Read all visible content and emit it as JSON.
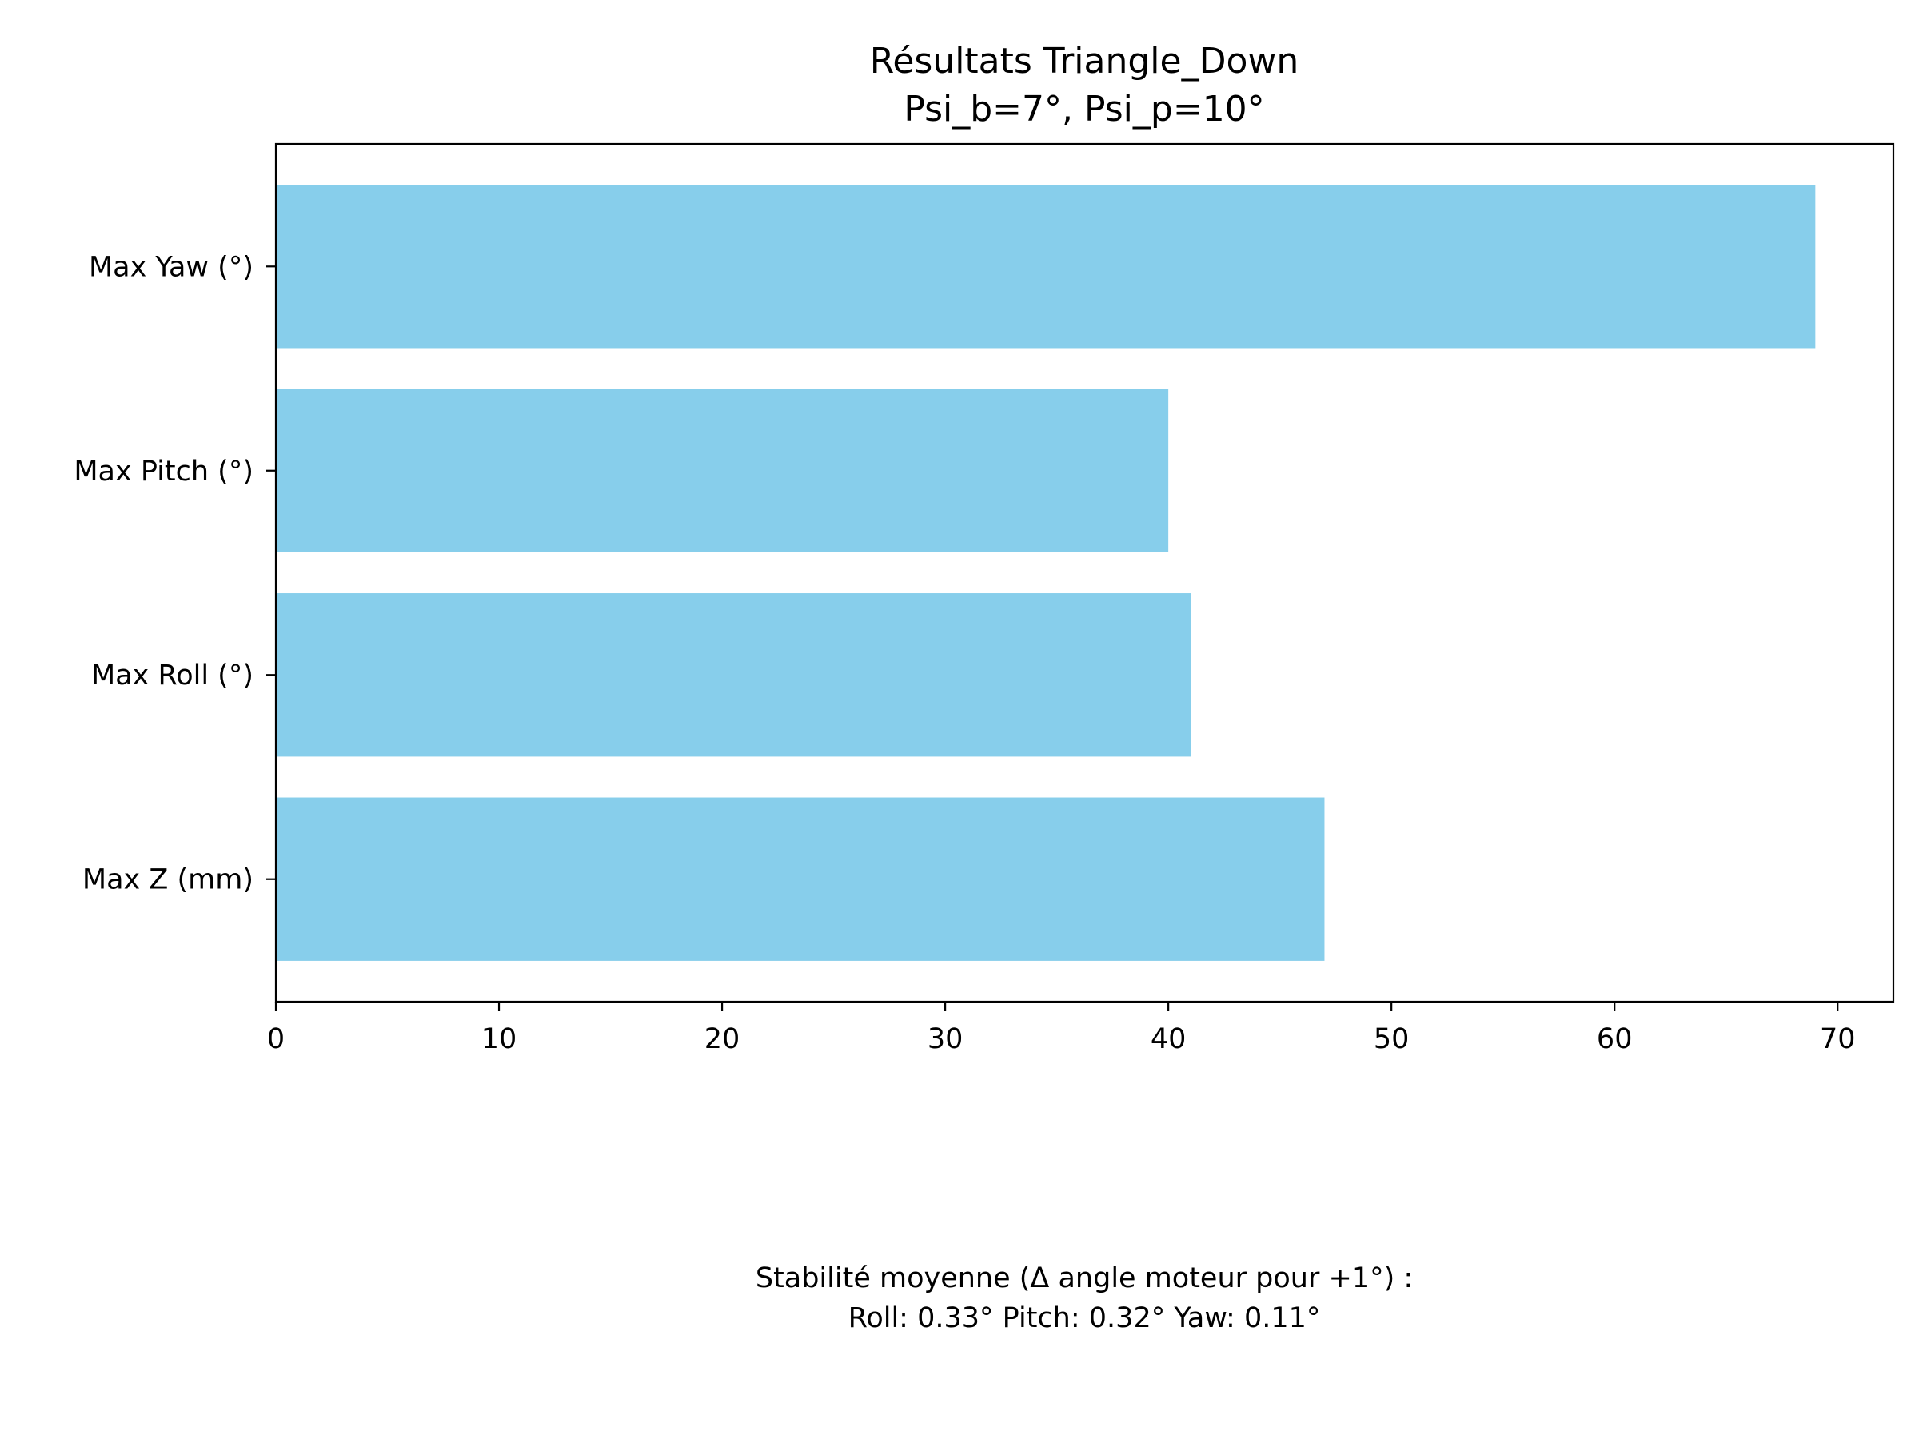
{
  "chart_data": {
    "type": "bar",
    "orientation": "horizontal",
    "title": "Résultats Triangle_Down",
    "subtitle": "Psi_b=7°, Psi_p=10°",
    "categories": [
      "Max Yaw (°)",
      "Max Pitch (°)",
      "Max Roll (°)",
      "Max Z (mm)"
    ],
    "values": [
      69.0,
      40.0,
      41.0,
      47.0
    ],
    "xlim": [
      0,
      72.5
    ],
    "xticks": [
      0,
      10,
      20,
      30,
      40,
      50,
      60,
      70
    ],
    "xlabel": "",
    "ylabel": "",
    "grid": false,
    "colors": {
      "bar": "#87ceeb",
      "axis": "#000000"
    },
    "annotation": {
      "line1": "Stabilité moyenne (Δ angle moteur pour +1°) :",
      "line2": "Roll: 0.33°   Pitch: 0.32°   Yaw: 0.11°"
    }
  }
}
